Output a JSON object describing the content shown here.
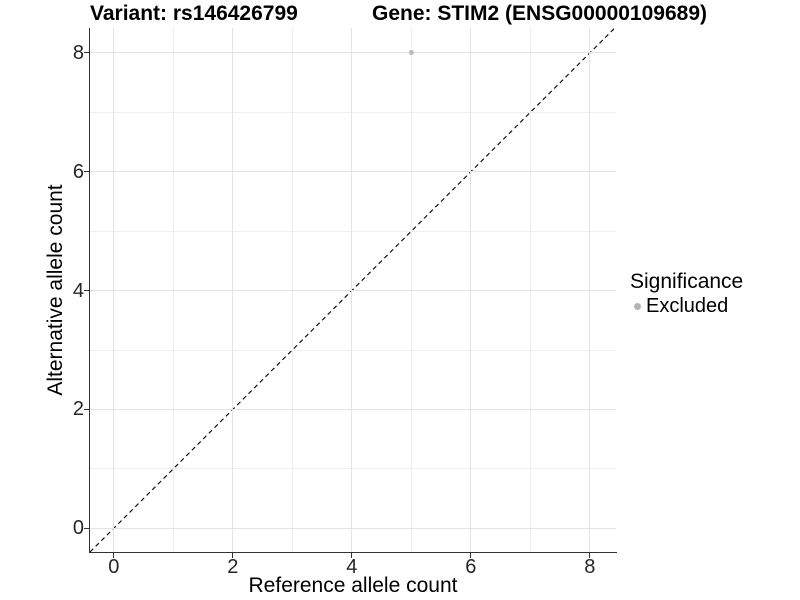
{
  "colors": {
    "background": "#ffffff",
    "grid_major": "#e3e3e3",
    "grid_minor": "#efefef",
    "axis_line": "#333333",
    "tick_mark": "#333333",
    "tick_text": "#262626",
    "title_text": "#000000",
    "point": "#bcbcbc",
    "legend_point": "#b3b3b3",
    "identity_line": "#111111"
  },
  "chart_data": {
    "type": "scatter",
    "title_left": "Variant: rs146426799",
    "title_right": "Gene: STIM2 (ENSG00000109689)",
    "xlabel": "Reference allele count",
    "ylabel": "Alternative allele count",
    "xlim": [
      -0.4,
      8.44
    ],
    "ylim": [
      -0.4,
      8.42
    ],
    "x_ticks": [
      0,
      2,
      4,
      6,
      8
    ],
    "y_ticks": [
      0,
      2,
      4,
      6,
      8
    ],
    "x_minor": [
      1,
      3,
      5,
      7
    ],
    "y_minor": [
      1,
      3,
      5,
      7
    ],
    "grid": true,
    "points": [
      {
        "x": 5,
        "y": 8,
        "series": "Excluded"
      }
    ],
    "identity_line": {
      "slope": 1,
      "intercept": 0,
      "style": "dashed"
    },
    "legend": {
      "title": "Significance",
      "position": "right",
      "items": [
        {
          "label": "Excluded",
          "marker": "circle"
        }
      ]
    }
  }
}
